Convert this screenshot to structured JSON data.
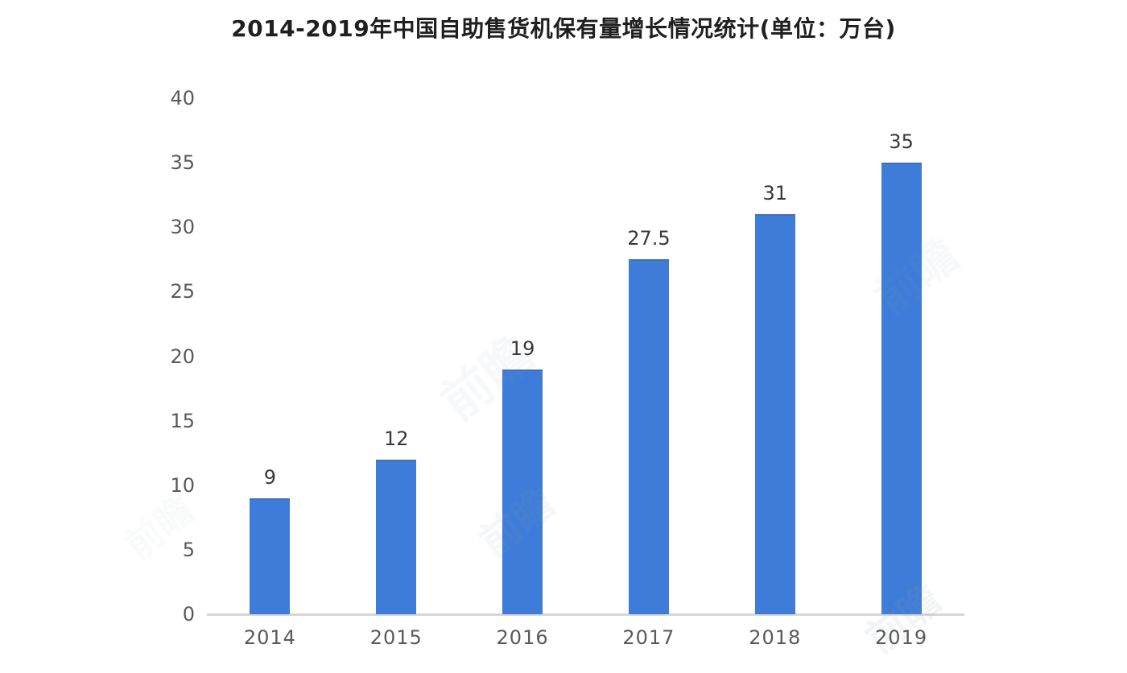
{
  "title": "2014-2019年中国自助售货机保有量增长情况统计(单位：万台)",
  "watermark": {
    "text": "前瞻"
  },
  "chart_data": {
    "type": "bar",
    "title": "2014-2019年中国自助售货机保有量增长情况统计(单位：万台)",
    "categories": [
      "2014",
      "2015",
      "2016",
      "2017",
      "2018",
      "2019"
    ],
    "values": [
      9,
      12,
      19,
      27.5,
      31,
      35
    ],
    "value_labels": [
      "9",
      "12",
      "19",
      "27.5",
      "31",
      "35"
    ],
    "unit": "万台",
    "xlabel": "",
    "ylabel": "",
    "ylim": [
      0,
      40
    ],
    "yticks": [
      0,
      5,
      10,
      15,
      20,
      25,
      30,
      35,
      40
    ],
    "grid": false,
    "legend": false,
    "bar_color": "#3d7cd8",
    "axis_line_color": "#d6d6d6",
    "label_color": "#383838",
    "tick_color": "#595959"
  }
}
